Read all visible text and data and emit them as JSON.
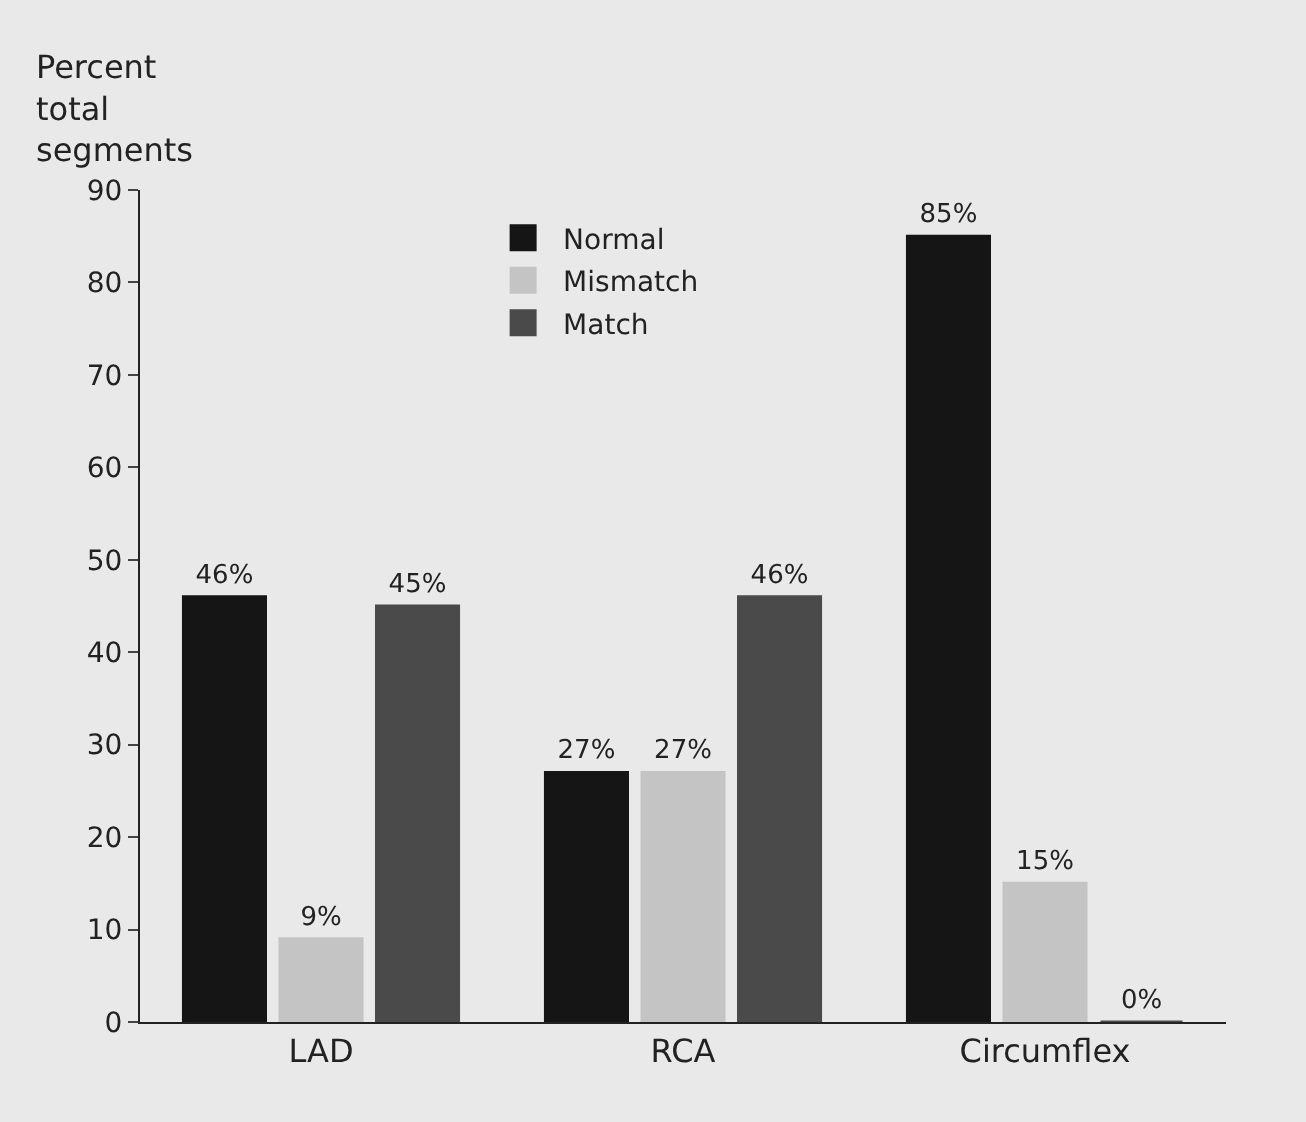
{
  "chart_data": {
    "type": "bar",
    "ylabel": "Percent total segments",
    "categories": [
      "LAD",
      "RCA",
      "Circumflex"
    ],
    "series": [
      {
        "name": "Normal",
        "color": "#151515",
        "values": [
          46,
          27,
          85
        ],
        "value_labels": [
          "46%",
          "27%",
          "85%"
        ]
      },
      {
        "name": "Mismatch",
        "color": "#c4c4c4",
        "values": [
          9,
          27,
          15
        ],
        "value_labels": [
          "9%",
          "27%",
          "15%"
        ]
      },
      {
        "name": "Match",
        "color": "#4a4a4a",
        "values": [
          45,
          46,
          0
        ],
        "value_labels": [
          "45%",
          "46%",
          "0%"
        ]
      }
    ],
    "ylim": [
      0,
      90
    ],
    "yticks": [
      0,
      10,
      20,
      30,
      40,
      50,
      60,
      70,
      80,
      90
    ],
    "grid": false,
    "legend": "top"
  }
}
